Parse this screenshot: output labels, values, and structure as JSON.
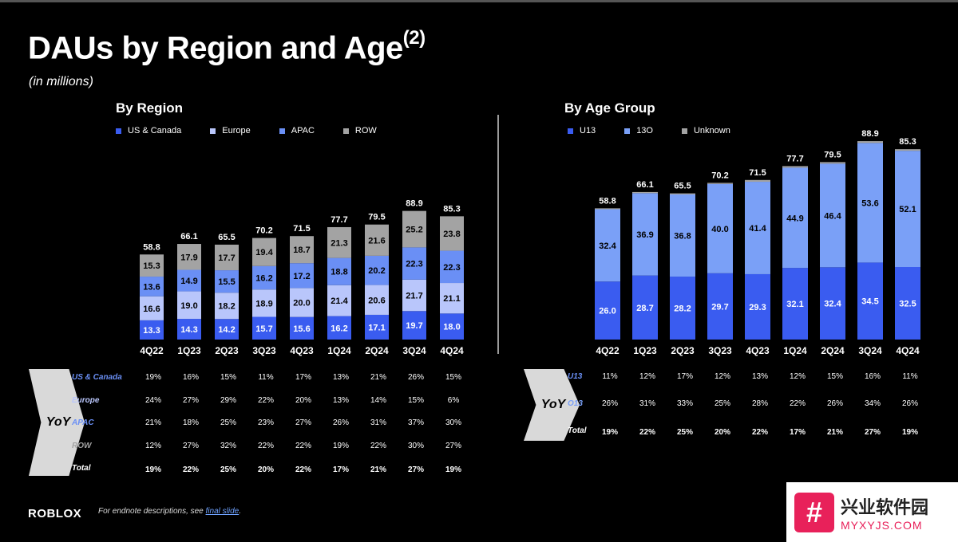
{
  "header": {
    "title": "DAUs by Region and Age",
    "title_sup": "(2)",
    "subtitle": "(in millions)"
  },
  "chart_data": [
    {
      "type": "bar",
      "stacked": true,
      "title": "By Region",
      "categories": [
        "4Q22",
        "1Q23",
        "2Q23",
        "3Q23",
        "4Q23",
        "1Q24",
        "2Q24",
        "3Q24",
        "4Q24"
      ],
      "series": [
        {
          "name": "US & Canada",
          "color": "#3a5cf0",
          "values": [
            13.3,
            14.3,
            14.2,
            15.7,
            15.6,
            16.2,
            17.1,
            19.7,
            18.0
          ]
        },
        {
          "name": "Europe",
          "color": "#b9c6fb",
          "values": [
            16.6,
            19.0,
            18.2,
            18.9,
            20.0,
            21.4,
            20.6,
            21.7,
            21.1
          ]
        },
        {
          "name": "APAC",
          "color": "#6a8ff5",
          "values": [
            13.6,
            14.9,
            15.5,
            16.2,
            17.2,
            18.8,
            20.2,
            22.3,
            22.3
          ]
        },
        {
          "name": "ROW",
          "color": "#a3a3a3",
          "values": [
            15.3,
            17.9,
            17.7,
            19.4,
            18.7,
            21.3,
            21.6,
            25.2,
            23.8
          ]
        }
      ],
      "totals": [
        "58.8",
        "66.1",
        "65.5",
        "70.2",
        "71.5",
        "77.7",
        "79.5",
        "88.9",
        "85.3"
      ],
      "legend_position": "top-left"
    },
    {
      "type": "bar",
      "stacked": true,
      "title": "By Age Group",
      "categories": [
        "4Q22",
        "1Q23",
        "2Q23",
        "3Q23",
        "4Q23",
        "1Q24",
        "2Q24",
        "3Q24",
        "4Q24"
      ],
      "series": [
        {
          "name": "U13",
          "color": "#3a5cf0",
          "values": [
            26.0,
            28.7,
            28.2,
            29.7,
            29.3,
            32.1,
            32.4,
            34.5,
            32.5
          ]
        },
        {
          "name": "13O",
          "color": "#7aa0f7",
          "values": [
            32.4,
            36.9,
            36.8,
            40.0,
            41.4,
            44.9,
            46.4,
            53.6,
            52.1
          ]
        },
        {
          "name": "Unknown",
          "color": "#a3a3a3",
          "values": [
            0.4,
            0.5,
            0.5,
            0.5,
            0.8,
            0.7,
            0.7,
            0.8,
            0.7
          ]
        }
      ],
      "totals": [
        "58.8",
        "66.1",
        "65.5",
        "70.2",
        "71.5",
        "77.7",
        "79.5",
        "88.9",
        "85.3"
      ],
      "legend_position": "top-left"
    }
  ],
  "region_yoy": {
    "label": "YoY",
    "rows": [
      {
        "label": "US & Canada",
        "color": "#6a8ff5",
        "values": [
          "19%",
          "16%",
          "15%",
          "11%",
          "17%",
          "13%",
          "21%",
          "26%",
          "15%"
        ]
      },
      {
        "label": "Europe",
        "color": "#b9c6fb",
        "values": [
          "24%",
          "27%",
          "29%",
          "22%",
          "20%",
          "13%",
          "14%",
          "15%",
          "6%"
        ]
      },
      {
        "label": "APAC",
        "color": "#6a8ff5",
        "values": [
          "21%",
          "18%",
          "25%",
          "23%",
          "27%",
          "26%",
          "31%",
          "37%",
          "30%"
        ]
      },
      {
        "label": "ROW",
        "color": "#a3a3a3",
        "values": [
          "12%",
          "27%",
          "32%",
          "22%",
          "22%",
          "19%",
          "22%",
          "30%",
          "27%"
        ]
      },
      {
        "label": "Total",
        "color": "#ffffff",
        "values": [
          "19%",
          "22%",
          "25%",
          "20%",
          "22%",
          "17%",
          "21%",
          "27%",
          "19%"
        ]
      }
    ]
  },
  "age_yoy": {
    "label": "YoY",
    "rows": [
      {
        "label": "U13",
        "color": "#6a8ff5",
        "values": [
          "11%",
          "12%",
          "17%",
          "12%",
          "13%",
          "12%",
          "15%",
          "16%",
          "11%"
        ]
      },
      {
        "label": "O13",
        "color": "#7aa0f7",
        "values": [
          "26%",
          "31%",
          "33%",
          "25%",
          "28%",
          "22%",
          "26%",
          "34%",
          "26%"
        ]
      },
      {
        "label": "Total",
        "color": "#ffffff",
        "values": [
          "19%",
          "22%",
          "25%",
          "20%",
          "22%",
          "17%",
          "21%",
          "27%",
          "19%"
        ]
      }
    ]
  },
  "footer": {
    "logo": "ROBLOX",
    "note": "For endnote descriptions, see ",
    "note_link": "final slide",
    "note_end": "."
  },
  "watermark": {
    "cn": "兴业软件园",
    "en": "MYXYJS.COM"
  }
}
